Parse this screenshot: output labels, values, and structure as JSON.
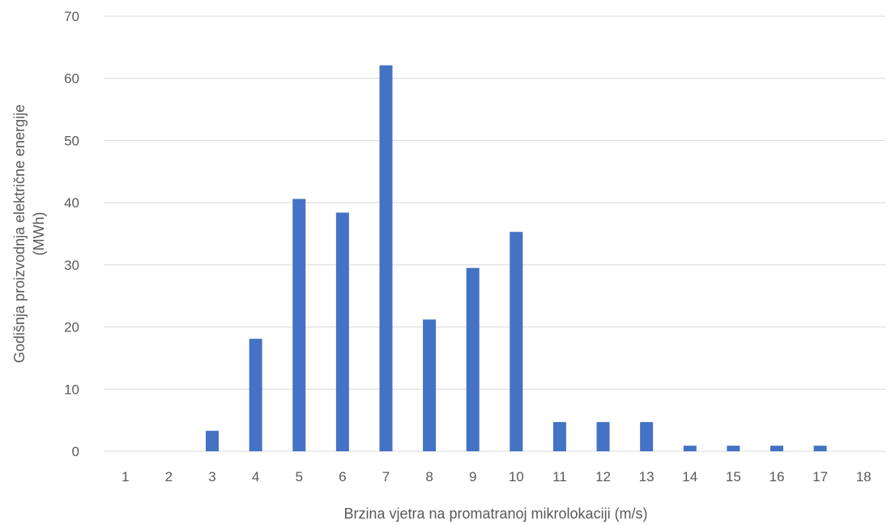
{
  "chart_data": {
    "type": "bar",
    "title": "",
    "xlabel": "Brzina vjetra na promatranoj mikrolokaciji (m/s)",
    "ylabel_lines": [
      "Godišnja proizvodnja električne energije",
      "(MWh)"
    ],
    "categories": [
      "1",
      "2",
      "3",
      "4",
      "5",
      "6",
      "7",
      "8",
      "9",
      "10",
      "11",
      "12",
      "13",
      "14",
      "15",
      "16",
      "17",
      "18"
    ],
    "values": [
      0,
      0,
      3.3,
      18.1,
      40.6,
      38.4,
      62.1,
      21.2,
      29.5,
      35.3,
      4.7,
      4.7,
      4.7,
      0.9,
      0.9,
      0.9,
      0.9,
      0
    ],
    "ylim": [
      0,
      70
    ],
    "yticks": [
      "0",
      "10",
      "20",
      "30",
      "40",
      "50",
      "60",
      "70"
    ],
    "grid": true,
    "legend": "none",
    "colors": {
      "bar": "#4472c4",
      "grid": "#d9d9d9",
      "text": "#595959"
    }
  }
}
